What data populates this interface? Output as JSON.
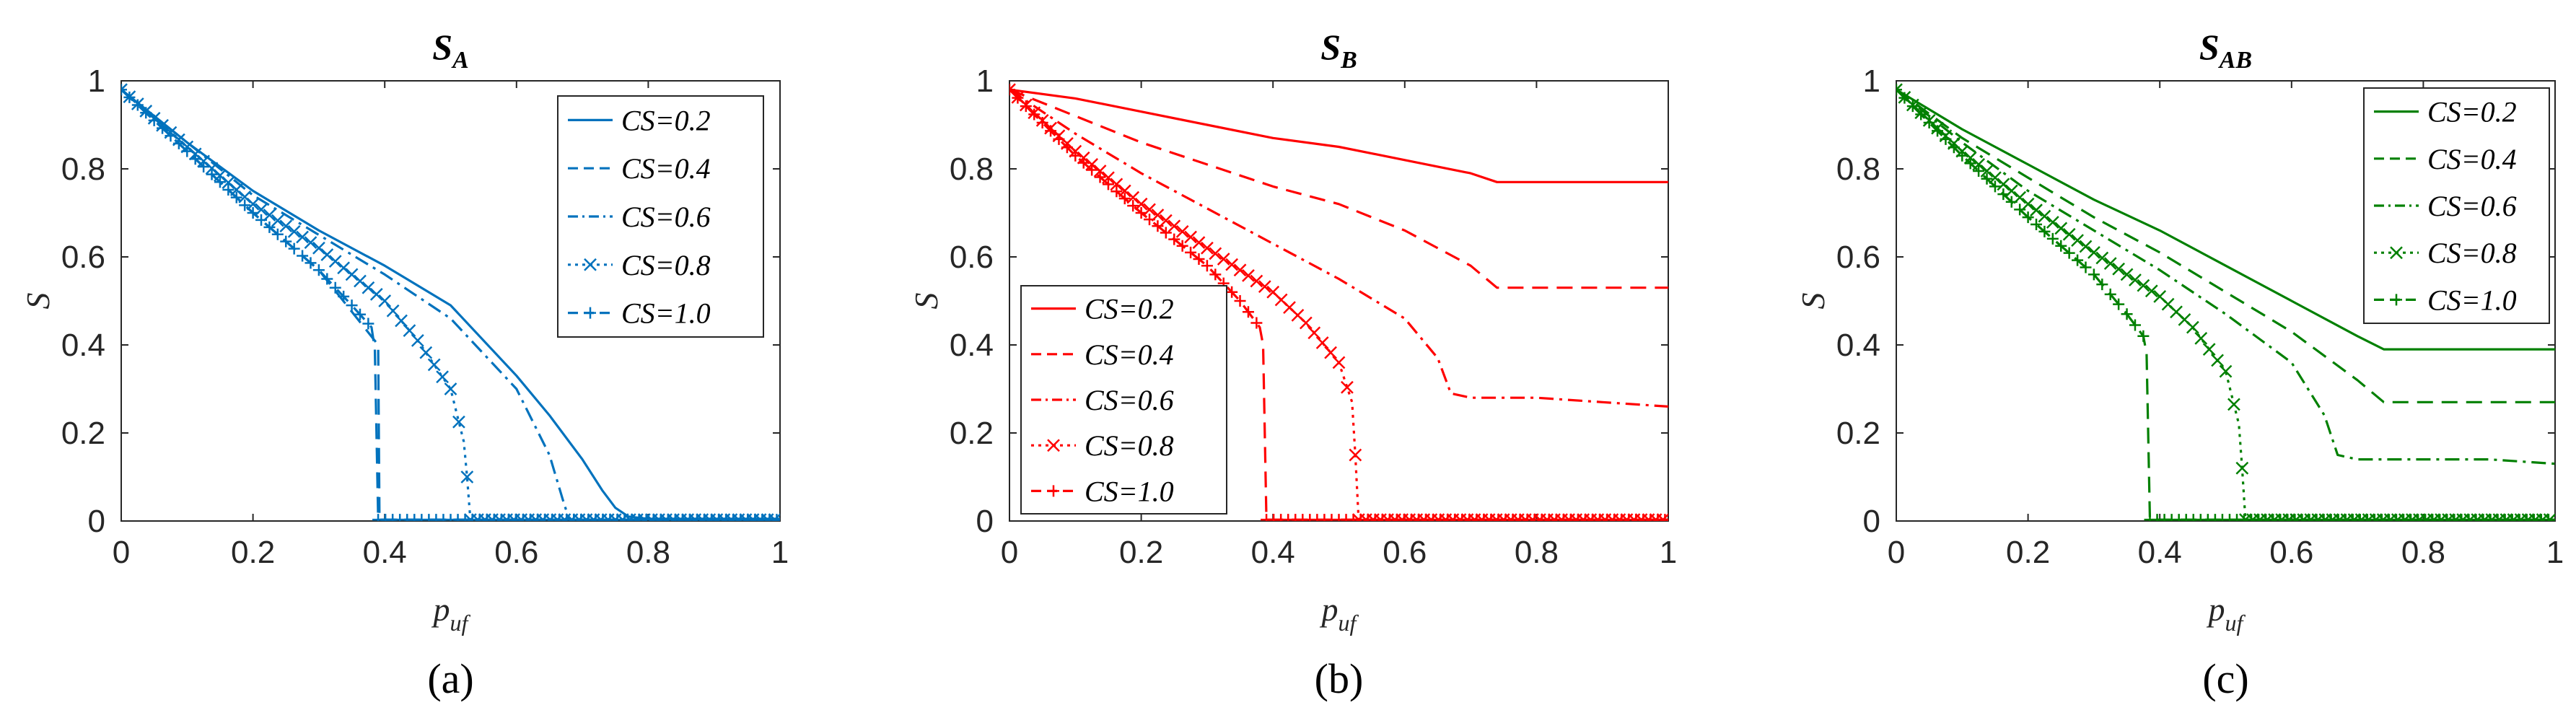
{
  "chart_data": [
    {
      "type": "line",
      "panel_label": "(a)",
      "panel_letter": "a",
      "title_main": "S",
      "title_sub": "A",
      "xlabel_main": "p",
      "xlabel_sub": "uf",
      "ylabel": "S",
      "xlim": [
        0,
        1
      ],
      "ylim": [
        0,
        1
      ],
      "xticks": [
        "0",
        "0.2",
        "0.4",
        "0.6",
        "0.8",
        "1"
      ],
      "yticks": [
        "0",
        "0.2",
        "0.4",
        "0.6",
        "0.8",
        "1"
      ],
      "color": "#0072BD",
      "legend_position": "top-right",
      "series": [
        {
          "name": "CS=0.2",
          "style": "solid",
          "marker": "none",
          "x": [
            0,
            0.1,
            0.2,
            0.3,
            0.4,
            0.5,
            0.6,
            0.65,
            0.7,
            0.73,
            0.75,
            0.77,
            0.8,
            0.9,
            1.0
          ],
          "y": [
            0.98,
            0.86,
            0.75,
            0.66,
            0.58,
            0.49,
            0.33,
            0.24,
            0.14,
            0.07,
            0.03,
            0.01,
            0.005,
            0.005,
            0.005
          ]
        },
        {
          "name": "CS=0.4",
          "style": "dashed",
          "marker": "none",
          "x": [
            0,
            0.1,
            0.2,
            0.3,
            0.39,
            0.392,
            0.4,
            0.6,
            0.8,
            1.0
          ],
          "y": [
            0.98,
            0.84,
            0.7,
            0.57,
            0.4,
            0.003,
            0.003,
            0.003,
            0.003,
            0.003
          ]
        },
        {
          "name": "CS=0.6",
          "style": "dashdot",
          "marker": "none",
          "x": [
            0,
            0.1,
            0.2,
            0.3,
            0.4,
            0.5,
            0.6,
            0.65,
            0.67,
            0.68,
            0.8,
            1.0
          ],
          "y": [
            0.98,
            0.86,
            0.74,
            0.65,
            0.56,
            0.46,
            0.3,
            0.15,
            0.05,
            0.003,
            0.003,
            0.003
          ]
        },
        {
          "name": "CS=0.8",
          "style": "dotted",
          "marker": "x",
          "x": [
            0,
            0.1,
            0.2,
            0.3,
            0.4,
            0.45,
            0.5,
            0.52,
            0.525,
            0.53,
            0.6,
            0.8,
            1.0
          ],
          "y": [
            0.98,
            0.85,
            0.72,
            0.62,
            0.5,
            0.41,
            0.3,
            0.18,
            0.1,
            0.003,
            0.003,
            0.003,
            0.003
          ]
        },
        {
          "name": "CS=1.0",
          "style": "dashdash",
          "marker": "+",
          "x": [
            0,
            0.1,
            0.2,
            0.3,
            0.35,
            0.38,
            0.385,
            0.39,
            0.6,
            0.8,
            1.0
          ],
          "y": [
            0.98,
            0.84,
            0.7,
            0.57,
            0.49,
            0.44,
            0.39,
            0.003,
            0.003,
            0.003,
            0.003
          ]
        }
      ]
    },
    {
      "type": "line",
      "panel_label": "(b)",
      "panel_letter": "b",
      "title_main": "S",
      "title_sub": "B",
      "xlabel_main": "p",
      "xlabel_sub": "uf",
      "ylabel": "S",
      "xlim": [
        0,
        1
      ],
      "ylim": [
        0,
        1
      ],
      "xticks": [
        "0",
        "0.2",
        "0.4",
        "0.6",
        "0.8",
        "1"
      ],
      "yticks": [
        "0",
        "0.2",
        "0.4",
        "0.6",
        "0.8",
        "1"
      ],
      "color": "#FF0000",
      "legend_position": "bottom-left",
      "series": [
        {
          "name": "CS=0.2",
          "style": "solid",
          "marker": "none",
          "x": [
            0,
            0.1,
            0.2,
            0.3,
            0.4,
            0.5,
            0.6,
            0.7,
            0.74,
            0.8,
            0.9,
            1.0
          ],
          "y": [
            0.98,
            0.96,
            0.93,
            0.9,
            0.87,
            0.85,
            0.82,
            0.79,
            0.77,
            0.77,
            0.77,
            0.77
          ]
        },
        {
          "name": "CS=0.4",
          "style": "dashed",
          "marker": "none",
          "x": [
            0,
            0.1,
            0.2,
            0.3,
            0.4,
            0.5,
            0.6,
            0.7,
            0.74,
            0.8,
            0.9,
            1.0
          ],
          "y": [
            0.98,
            0.92,
            0.86,
            0.81,
            0.76,
            0.72,
            0.66,
            0.58,
            0.53,
            0.53,
            0.53,
            0.53
          ]
        },
        {
          "name": "CS=0.6",
          "style": "dashdot",
          "marker": "none",
          "x": [
            0,
            0.1,
            0.2,
            0.3,
            0.4,
            0.5,
            0.6,
            0.65,
            0.67,
            0.7,
            0.8,
            0.9,
            1.0
          ],
          "y": [
            0.98,
            0.88,
            0.79,
            0.71,
            0.63,
            0.55,
            0.46,
            0.37,
            0.29,
            0.28,
            0.28,
            0.27,
            0.26
          ]
        },
        {
          "name": "CS=0.8",
          "style": "dotted",
          "marker": "x",
          "x": [
            0,
            0.1,
            0.2,
            0.3,
            0.4,
            0.45,
            0.5,
            0.52,
            0.525,
            0.53,
            0.6,
            0.8,
            1.0
          ],
          "y": [
            0.98,
            0.84,
            0.72,
            0.62,
            0.52,
            0.45,
            0.36,
            0.27,
            0.15,
            0.003,
            0.003,
            0.003,
            0.003
          ]
        },
        {
          "name": "CS=1.0",
          "style": "dashdash",
          "marker": "+",
          "x": [
            0,
            0.1,
            0.2,
            0.3,
            0.35,
            0.38,
            0.385,
            0.39,
            0.6,
            0.8,
            1.0
          ],
          "y": [
            0.98,
            0.83,
            0.7,
            0.58,
            0.5,
            0.44,
            0.4,
            0.003,
            0.003,
            0.003,
            0.003
          ]
        }
      ]
    },
    {
      "type": "line",
      "panel_label": "(c)",
      "panel_letter": "c",
      "title_main": "S",
      "title_sub": "AB",
      "xlabel_main": "p",
      "xlabel_sub": "uf",
      "ylabel": "S",
      "xlim": [
        0,
        1
      ],
      "ylim": [
        0,
        1
      ],
      "xticks": [
        "0",
        "0.2",
        "0.4",
        "0.6",
        "0.8",
        "1"
      ],
      "yticks": [
        "0",
        "0.2",
        "0.4",
        "0.6",
        "0.8",
        "1"
      ],
      "color": "#008000",
      "legend_position": "top-right",
      "series": [
        {
          "name": "CS=0.2",
          "style": "solid",
          "marker": "none",
          "x": [
            0,
            0.1,
            0.2,
            0.3,
            0.4,
            0.5,
            0.6,
            0.7,
            0.74,
            0.8,
            0.9,
            1.0
          ],
          "y": [
            0.98,
            0.89,
            0.81,
            0.73,
            0.66,
            0.58,
            0.5,
            0.42,
            0.39,
            0.39,
            0.39,
            0.39
          ]
        },
        {
          "name": "CS=0.4",
          "style": "dashed",
          "marker": "none",
          "x": [
            0,
            0.1,
            0.2,
            0.3,
            0.4,
            0.5,
            0.6,
            0.7,
            0.74,
            0.8,
            0.9,
            1.0
          ],
          "y": [
            0.98,
            0.87,
            0.78,
            0.69,
            0.61,
            0.52,
            0.43,
            0.32,
            0.27,
            0.27,
            0.27,
            0.27
          ]
        },
        {
          "name": "CS=0.6",
          "style": "dashdot",
          "marker": "none",
          "x": [
            0,
            0.1,
            0.2,
            0.3,
            0.4,
            0.5,
            0.6,
            0.65,
            0.67,
            0.7,
            0.8,
            0.9,
            1.0
          ],
          "y": [
            0.98,
            0.86,
            0.75,
            0.66,
            0.57,
            0.47,
            0.36,
            0.24,
            0.15,
            0.14,
            0.14,
            0.14,
            0.13
          ]
        },
        {
          "name": "CS=0.8",
          "style": "dotted",
          "marker": "x",
          "x": [
            0,
            0.1,
            0.2,
            0.3,
            0.4,
            0.45,
            0.5,
            0.52,
            0.525,
            0.53,
            0.6,
            0.8,
            1.0
          ],
          "y": [
            0.98,
            0.84,
            0.72,
            0.61,
            0.51,
            0.44,
            0.34,
            0.22,
            0.12,
            0.003,
            0.003,
            0.003,
            0.003
          ]
        },
        {
          "name": "CS=1.0",
          "style": "dashdash",
          "marker": "+",
          "x": [
            0,
            0.1,
            0.2,
            0.3,
            0.35,
            0.375,
            0.38,
            0.385,
            0.6,
            0.8,
            1.0
          ],
          "y": [
            0.98,
            0.83,
            0.69,
            0.56,
            0.47,
            0.42,
            0.38,
            0.003,
            0.003,
            0.003,
            0.003
          ]
        }
      ]
    }
  ]
}
